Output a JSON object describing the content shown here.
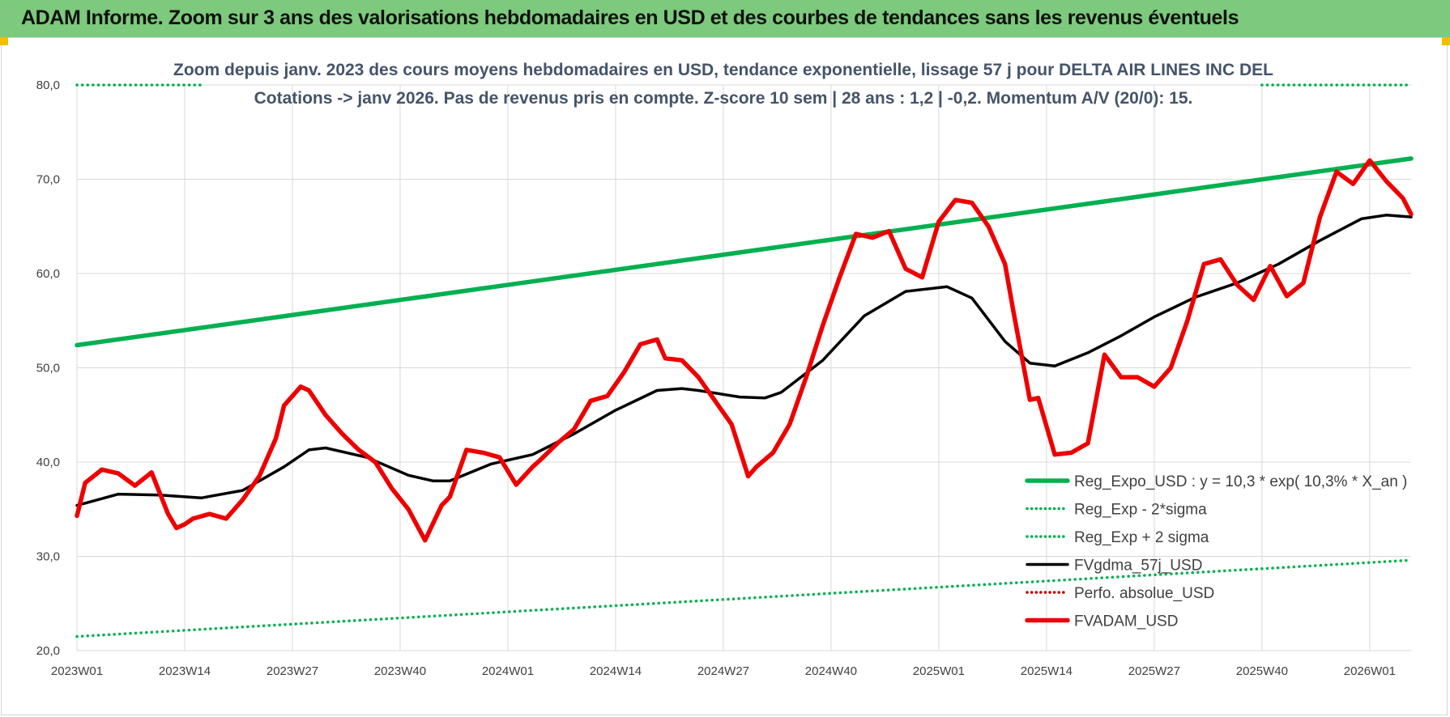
{
  "header": {
    "title": "ADAM Informe. Zoom sur 3 ans des valorisations hebdomadaires en USD et des courbes de tendances sans les revenus éventuels"
  },
  "chart_data": {
    "type": "line",
    "subtitle_lines": [
      "Zoom depuis janv. 2023 des cours moyens hebdomadaires en USD, tendance exponentielle, lissage 57 j pour DELTA AIR LINES INC DEL",
      "Cotations -> janv 2026. Pas de revenus pris en compte. Z-score 10 sem | 28 ans : 1,2 | -0,2. Momentum A/V (20/0): 15."
    ],
    "ylim": [
      20,
      80
    ],
    "y_ticks": [
      "20,0",
      "30,0",
      "40,0",
      "50,0",
      "60,0",
      "70,0",
      "80,0"
    ],
    "x_ticks": [
      {
        "label": "2023W01",
        "week": 0
      },
      {
        "label": "2023W14",
        "week": 13
      },
      {
        "label": "2023W27",
        "week": 26
      },
      {
        "label": "2023W40",
        "week": 39
      },
      {
        "label": "2024W01",
        "week": 52
      },
      {
        "label": "2024W14",
        "week": 65
      },
      {
        "label": "2024W27",
        "week": 78
      },
      {
        "label": "2024W40",
        "week": 91
      },
      {
        "label": "2025W01",
        "week": 104
      },
      {
        "label": "2025W14",
        "week": 117
      },
      {
        "label": "2025W27",
        "week": 130
      },
      {
        "label": "2025W40",
        "week": 143
      },
      {
        "label": "2026W01",
        "week": 156
      }
    ],
    "x_range": [
      0,
      161
    ],
    "grid": "vertical and horizontal",
    "legend_position": "bottom-right",
    "series": [
      {
        "name": "Reg_Expo_USD : y = 10,3 * exp( 10,3% *  X_an )",
        "color": "#00b050",
        "style": "solid-thick",
        "x": [
          0,
          161
        ],
        "y": [
          52.4,
          72.2
        ]
      },
      {
        "name": "Reg_Exp - 2*sigma",
        "color": "#00b050",
        "style": "dotted",
        "x": [
          0,
          161
        ],
        "y": [
          21.5,
          29.6
        ]
      },
      {
        "name": "Reg_Exp + 2 sigma",
        "color": "#00b050",
        "style": "dotted",
        "x": [
          0,
          15,
          143,
          161
        ],
        "y": [
          80,
          80,
          80,
          80
        ]
      },
      {
        "name": "FVgdma_57j_USD",
        "color": "#000000",
        "style": "solid",
        "x": [
          0,
          5,
          10,
          15,
          20,
          25,
          28,
          30,
          35,
          40,
          43,
          45,
          50,
          55,
          60,
          65,
          70,
          73,
          75,
          80,
          83,
          85,
          90,
          95,
          100,
          103,
          105,
          108,
          112,
          115,
          118,
          122,
          126,
          130,
          135,
          140,
          145,
          150,
          155,
          158,
          161
        ],
        "y": [
          35.4,
          36.6,
          36.5,
          36.2,
          37.0,
          39.5,
          41.3,
          41.5,
          40.5,
          38.6,
          38.0,
          38.0,
          39.8,
          40.8,
          43.0,
          45.5,
          47.6,
          47.8,
          47.6,
          46.9,
          46.8,
          47.4,
          50.8,
          55.5,
          58.1,
          58.4,
          58.6,
          57.4,
          52.8,
          50.5,
          50.2,
          51.6,
          53.4,
          55.4,
          57.5,
          59.0,
          61.0,
          63.5,
          65.8,
          66.2,
          66.0
        ]
      },
      {
        "name": "Perfo. absolue_USD",
        "color": "#c00000",
        "style": "dotted",
        "x": [],
        "y": []
      },
      {
        "name": "FVADAM_USD",
        "color": "#ee0000",
        "style": "solid-thick",
        "x": [
          0,
          1,
          3,
          5,
          7,
          9,
          11,
          12,
          13,
          14,
          16,
          18,
          20,
          22,
          24,
          25,
          27,
          28,
          30,
          32,
          34,
          36,
          38,
          40,
          42,
          44,
          45,
          47,
          49,
          51,
          53,
          55,
          56,
          58,
          60,
          62,
          64,
          66,
          68,
          70,
          71,
          73,
          75,
          77,
          79,
          81,
          82,
          84,
          86,
          88,
          90,
          92,
          94,
          96,
          98,
          100,
          102,
          104,
          106,
          108,
          110,
          112,
          113,
          115,
          116,
          118,
          120,
          122,
          124,
          126,
          128,
          130,
          132,
          134,
          136,
          138,
          140,
          142,
          144,
          146,
          148,
          150,
          152,
          154,
          156,
          158,
          160,
          161
        ],
        "y": [
          34.3,
          37.8,
          39.2,
          38.8,
          37.5,
          38.9,
          34.5,
          33.0,
          33.4,
          34.0,
          34.5,
          34.0,
          36.0,
          38.5,
          42.5,
          46.0,
          48.0,
          47.6,
          45.0,
          43.0,
          41.3,
          40.0,
          37.2,
          35.0,
          31.7,
          35.4,
          36.3,
          41.3,
          41.0,
          40.5,
          37.6,
          39.5,
          40.3,
          42.0,
          43.5,
          46.5,
          47.0,
          49.5,
          52.5,
          53.0,
          51.0,
          50.8,
          49.0,
          46.5,
          44.0,
          38.5,
          39.5,
          41.0,
          44.0,
          49.0,
          54.5,
          59.5,
          64.2,
          63.8,
          64.5,
          60.5,
          59.6,
          65.5,
          67.8,
          67.5,
          65.0,
          61.0,
          56.0,
          46.6,
          46.8,
          40.8,
          41.0,
          42.0,
          51.4,
          49.0,
          49.0,
          48.0,
          50.0,
          55.0,
          61.0,
          61.5,
          58.8,
          57.2,
          60.8,
          57.6,
          59.0,
          66.0,
          70.8,
          69.5,
          72.0,
          69.8,
          68.0,
          66.3
        ]
      }
    ]
  }
}
